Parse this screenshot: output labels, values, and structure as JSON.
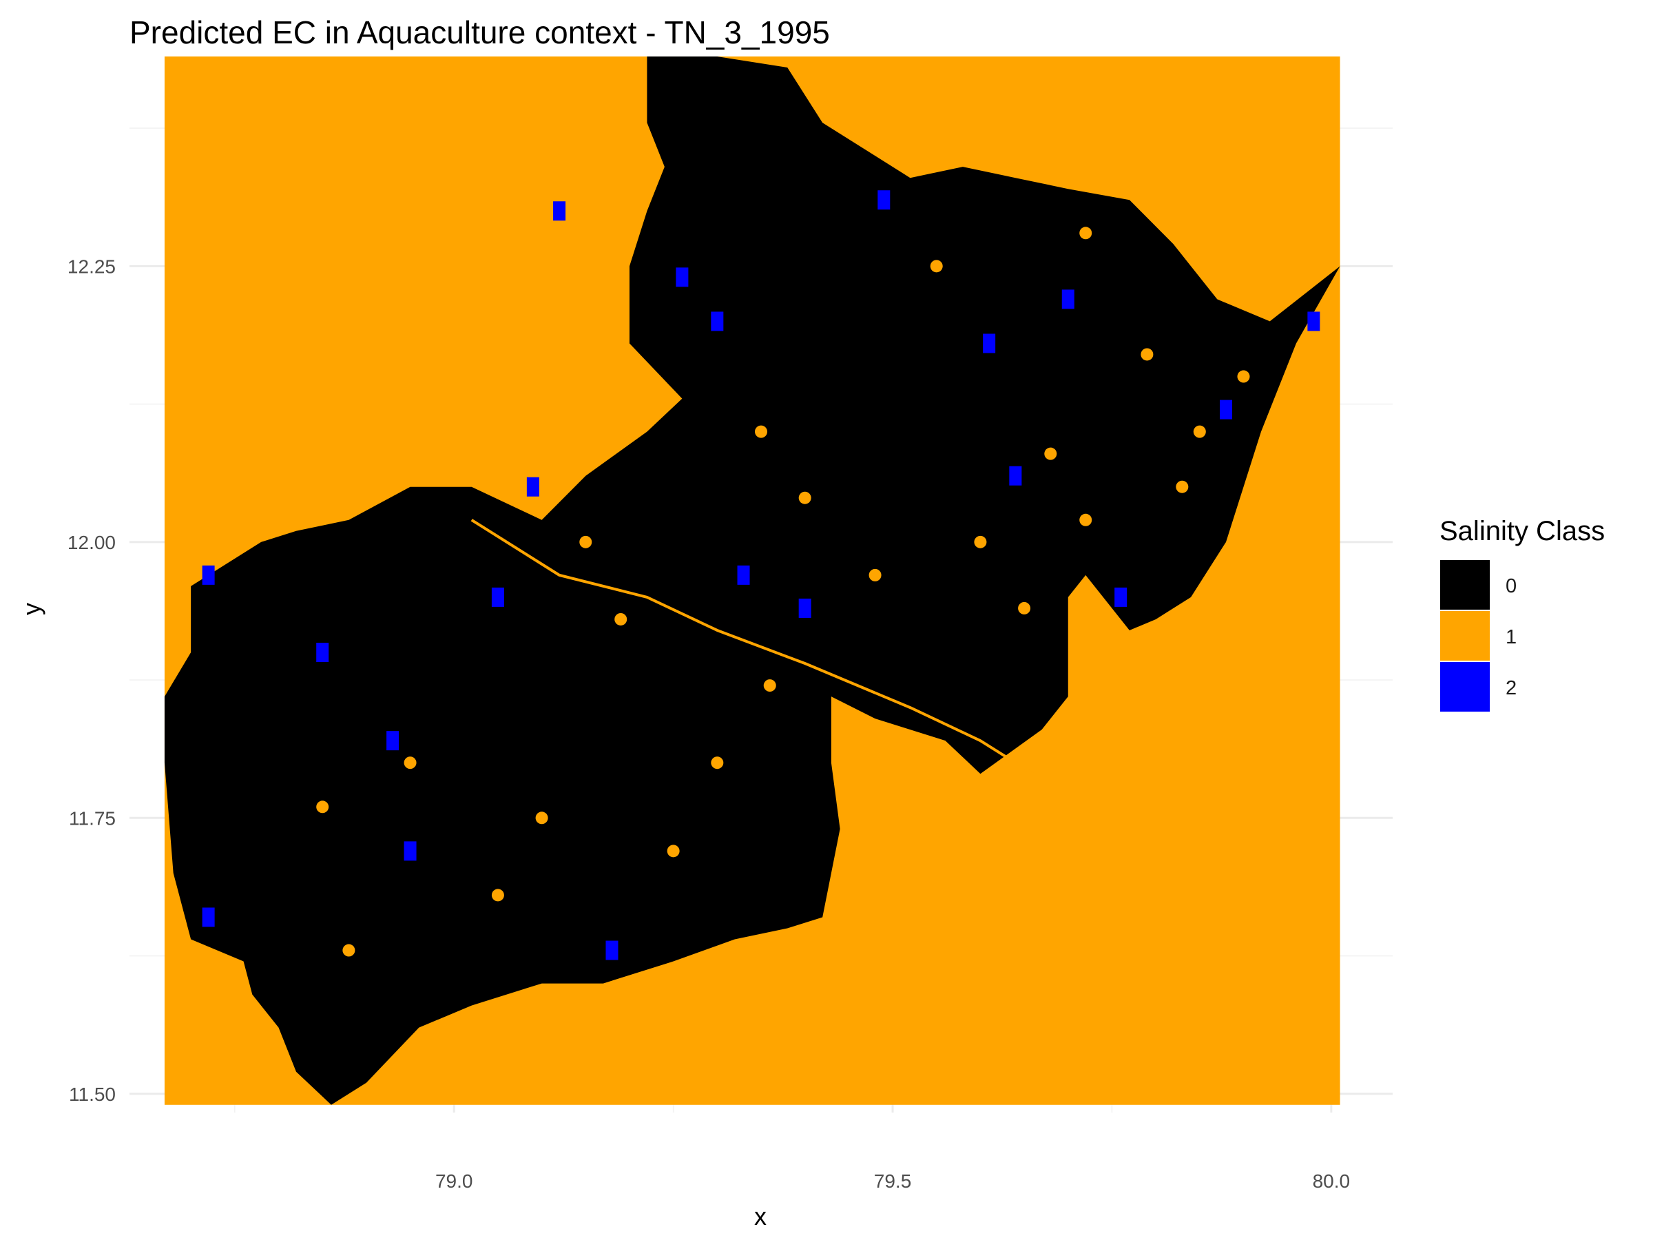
{
  "chart_data": {
    "type": "heatmap",
    "title": "Predicted EC in Aquaculture context - TN_3_1995",
    "xlabel": "x",
    "ylabel": "y",
    "x_ticks": [
      79.0,
      79.5,
      80.0
    ],
    "x_tick_labels": [
      "79.0",
      "79.5",
      "80.0"
    ],
    "y_ticks": [
      11.5,
      11.75,
      12.0,
      12.25
    ],
    "y_tick_labels": [
      "11.50",
      "11.75",
      "12.00",
      "12.25"
    ],
    "xlim": [
      78.63,
      80.07
    ],
    "ylim": [
      11.483,
      12.43
    ],
    "raster_extent": {
      "x": [
        78.67,
        80.01
      ],
      "y": [
        11.49,
        12.44
      ]
    },
    "background_class": "1",
    "grid": true,
    "legend": {
      "title": "Salinity Class",
      "position": "right",
      "entries": [
        {
          "label": "0",
          "color": "#000000"
        },
        {
          "label": "1",
          "color": "#FFA500"
        },
        {
          "label": "2",
          "color": "#0000FF"
        }
      ]
    },
    "region_outline": [
      [
        79.22,
        12.44
      ],
      [
        79.3,
        12.44
      ],
      [
        79.38,
        12.43
      ],
      [
        79.42,
        12.38
      ],
      [
        79.48,
        12.35
      ],
      [
        79.52,
        12.33
      ],
      [
        79.58,
        12.34
      ],
      [
        79.64,
        12.33
      ],
      [
        79.7,
        12.32
      ],
      [
        79.77,
        12.31
      ],
      [
        79.82,
        12.27
      ],
      [
        79.87,
        12.22
      ],
      [
        79.93,
        12.2
      ],
      [
        80.01,
        12.25
      ],
      [
        79.96,
        12.18
      ],
      [
        79.92,
        12.1
      ],
      [
        79.88,
        12.0
      ],
      [
        79.84,
        11.95
      ],
      [
        79.8,
        11.93
      ],
      [
        79.77,
        11.92
      ],
      [
        79.72,
        11.97
      ],
      [
        79.7,
        11.95
      ],
      [
        79.7,
        11.91
      ],
      [
        79.7,
        11.86
      ],
      [
        79.67,
        11.83
      ],
      [
        79.6,
        11.79
      ],
      [
        79.56,
        11.82
      ],
      [
        79.48,
        11.84
      ],
      [
        79.43,
        11.86
      ],
      [
        79.43,
        11.8
      ],
      [
        79.44,
        11.74
      ],
      [
        79.42,
        11.66
      ],
      [
        79.38,
        11.65
      ],
      [
        79.32,
        11.64
      ],
      [
        79.25,
        11.62
      ],
      [
        79.17,
        11.6
      ],
      [
        79.1,
        11.6
      ],
      [
        79.02,
        11.58
      ],
      [
        78.96,
        11.56
      ],
      [
        78.9,
        11.51
      ],
      [
        78.86,
        11.49
      ],
      [
        78.82,
        11.52
      ],
      [
        78.8,
        11.56
      ],
      [
        78.77,
        11.59
      ],
      [
        78.76,
        11.62
      ],
      [
        78.73,
        11.63
      ],
      [
        78.7,
        11.64
      ],
      [
        78.68,
        11.7
      ],
      [
        78.67,
        11.8
      ],
      [
        78.67,
        11.86
      ],
      [
        78.7,
        11.9
      ],
      [
        78.7,
        11.96
      ],
      [
        78.78,
        12.0
      ],
      [
        78.82,
        12.01
      ],
      [
        78.88,
        12.02
      ],
      [
        78.95,
        12.05
      ],
      [
        79.02,
        12.05
      ],
      [
        79.1,
        12.02
      ],
      [
        79.15,
        12.06
      ],
      [
        79.22,
        12.1
      ],
      [
        79.26,
        12.13
      ],
      [
        79.2,
        12.18
      ],
      [
        79.2,
        12.25
      ],
      [
        79.22,
        12.3
      ],
      [
        79.24,
        12.34
      ],
      [
        79.22,
        12.38
      ]
    ],
    "blue_patches": [
      [
        78.93,
        11.82
      ],
      [
        79.76,
        11.95
      ],
      [
        79.88,
        12.12
      ],
      [
        79.98,
        12.2
      ],
      [
        78.72,
        11.97
      ],
      [
        79.09,
        12.05
      ],
      [
        79.05,
        11.95
      ],
      [
        78.72,
        11.66
      ],
      [
        79.12,
        12.3
      ],
      [
        79.3,
        12.2
      ],
      [
        79.49,
        12.31
      ],
      [
        79.64,
        12.06
      ],
      [
        79.4,
        11.94
      ],
      [
        78.85,
        11.9
      ],
      [
        79.33,
        11.97
      ],
      [
        79.61,
        12.18
      ],
      [
        79.26,
        12.24
      ],
      [
        78.95,
        11.72
      ],
      [
        79.18,
        11.63
      ],
      [
        79.7,
        12.22
      ]
    ],
    "orange_patches": [
      [
        78.95,
        11.8
      ],
      [
        79.19,
        11.93
      ],
      [
        79.36,
        11.87
      ],
      [
        79.58,
        11.78
      ],
      [
        79.68,
        12.08
      ],
      [
        79.79,
        12.17
      ],
      [
        79.85,
        12.1
      ],
      [
        79.6,
        12.0
      ],
      [
        79.72,
        12.02
      ],
      [
        79.83,
        12.05
      ],
      [
        79.48,
        11.97
      ],
      [
        79.1,
        11.75
      ],
      [
        79.25,
        11.72
      ],
      [
        78.88,
        11.63
      ],
      [
        79.05,
        11.68
      ],
      [
        79.35,
        12.1
      ],
      [
        79.55,
        12.25
      ],
      [
        79.72,
        12.28
      ],
      [
        79.9,
        12.15
      ],
      [
        79.65,
        11.94
      ],
      [
        79.15,
        12.0
      ],
      [
        79.3,
        11.8
      ],
      [
        78.85,
        11.76
      ],
      [
        79.4,
        12.04
      ]
    ],
    "river_line": [
      [
        79.02,
        12.02
      ],
      [
        79.12,
        11.97
      ],
      [
        79.22,
        11.95
      ],
      [
        79.3,
        11.92
      ],
      [
        79.4,
        11.89
      ],
      [
        79.52,
        11.85
      ],
      [
        79.6,
        11.82
      ],
      [
        79.66,
        11.79
      ]
    ]
  }
}
